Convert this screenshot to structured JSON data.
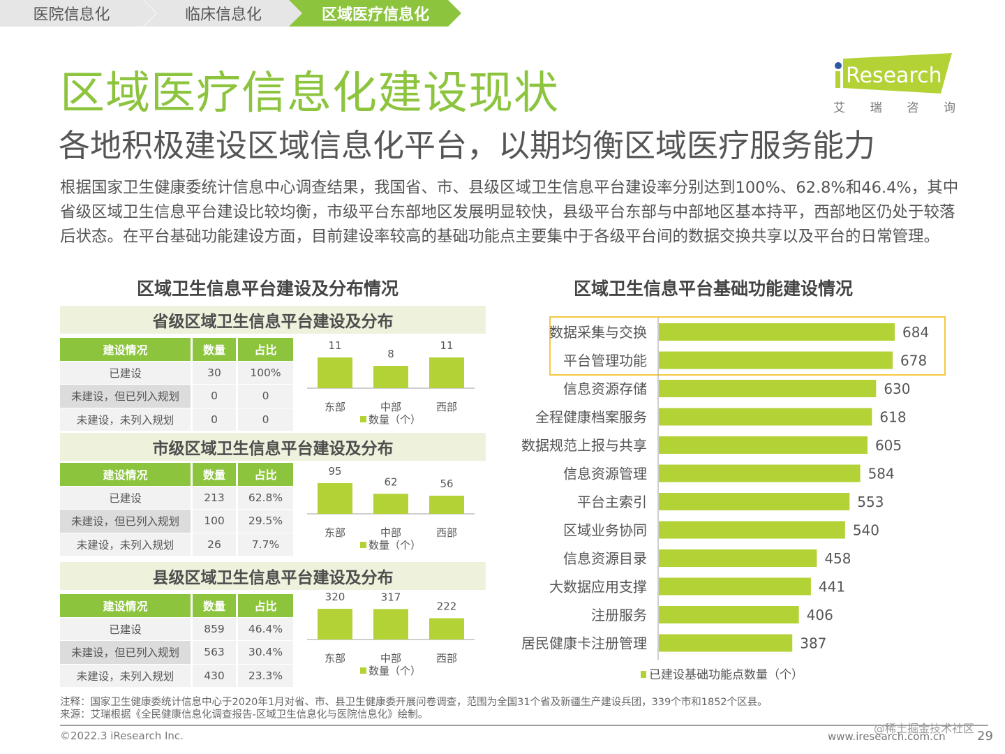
{
  "breadcrumb": {
    "tabs": [
      {
        "label": "医院信息化",
        "active": false
      },
      {
        "label": "临床信息化",
        "active": false
      },
      {
        "label": "区域医疗信息化",
        "active": true
      }
    ]
  },
  "colors": {
    "brand_green": "#8cc43e",
    "bar_green": "#b2d235",
    "highlight_border": "#f5c842",
    "inactive_tab": "#e6e6e6",
    "panel_header_bg": "#eef2dc"
  },
  "logo": {
    "text": "Research",
    "i_letter": "i",
    "sub": [
      "艾",
      "瑞",
      "咨",
      "询"
    ]
  },
  "header": {
    "title": "区域医疗信息化建设现状",
    "subtitle": "各地积极建设区域信息化平台，以期均衡区域医疗服务能力"
  },
  "body_text": "根据国家卫生健康委统计信息中心调查结果，我国省、市、县级区域卫生信息平台建设率分别达到100%、62.8%和46.4%，其中省级区域卫生信息平台建设比较均衡，市级平台东部地区发展明显较快，县级平台东部与中部地区基本持平，西部地区仍处于较落后状态。在平台基础功能建设方面，目前建设率较高的基础功能点主要集中于各级平台间的数据交换共享以及平台的日常管理。",
  "left_section": {
    "title": "区域卫生信息平台建设及分布情况",
    "columns": [
      "建设情况",
      "数量",
      "占比"
    ],
    "legend": "数量（个）",
    "panels": [
      {
        "title": "省级区域卫生信息平台建设及分布",
        "rows": [
          {
            "status": "已建设",
            "count": "30",
            "share": "100%"
          },
          {
            "status": "未建设，但已列入规划",
            "count": "0",
            "share": "0"
          },
          {
            "status": "未建设，未列入规划",
            "count": "0",
            "share": "0"
          }
        ]
      },
      {
        "title": "市级区域卫生信息平台建设及分布",
        "rows": [
          {
            "status": "已建设",
            "count": "213",
            "share": "62.8%"
          },
          {
            "status": "未建设，但已列入规划",
            "count": "100",
            "share": "29.5%"
          },
          {
            "status": "未建设，未列入规划",
            "count": "26",
            "share": "7.7%"
          }
        ]
      },
      {
        "title": "县级区域卫生信息平台建设及分布",
        "rows": [
          {
            "status": "已建设",
            "count": "859",
            "share": "46.4%"
          },
          {
            "status": "未建设，但已列入规划",
            "count": "563",
            "share": "30.4%"
          },
          {
            "status": "未建设，未列入规划",
            "count": "430",
            "share": "23.3%"
          }
        ]
      }
    ]
  },
  "right_section": {
    "title": "区域卫生信息平台基础功能建设情况"
  },
  "chart_data": [
    {
      "type": "bar",
      "title": "省级区域卫生信息平台建设及分布",
      "categories": [
        "东部",
        "中部",
        "西部"
      ],
      "series": [
        {
          "name": "数量（个）",
          "values": [
            11,
            8,
            11
          ]
        }
      ],
      "legend": "bottom"
    },
    {
      "type": "bar",
      "title": "市级区域卫生信息平台建设及分布",
      "categories": [
        "东部",
        "中部",
        "西部"
      ],
      "series": [
        {
          "name": "数量（个）",
          "values": [
            95,
            62,
            56
          ]
        }
      ],
      "legend": "bottom"
    },
    {
      "type": "bar",
      "title": "县级区域卫生信息平台建设及分布",
      "categories": [
        "东部",
        "中部",
        "西部"
      ],
      "series": [
        {
          "name": "数量（个）",
          "values": [
            320,
            317,
            222
          ]
        }
      ],
      "legend": "bottom"
    },
    {
      "type": "bar",
      "orientation": "horizontal",
      "title": "区域卫生信息平台基础功能建设情况",
      "categories": [
        "数据采集与交换",
        "平台管理功能",
        "信息资源存储",
        "全程健康档案服务",
        "数据规范上报与共享",
        "信息资源管理",
        "平台主索引",
        "区域业务协同",
        "信息资源目录",
        "大数据应用支撑",
        "注册服务",
        "居民健康卡注册管理"
      ],
      "series": [
        {
          "name": "已建设基础功能点数量（个）",
          "values": [
            684,
            678,
            630,
            618,
            605,
            584,
            553,
            540,
            458,
            441,
            406,
            387
          ]
        }
      ],
      "highlighted": [
        "数据采集与交换",
        "平台管理功能"
      ],
      "legend": "bottom",
      "xlim": [
        0,
        720
      ]
    }
  ],
  "footer": {
    "note": "注释：国家卫生健康委统计信息中心于2020年1月对省、市、县卫生健康委开展问卷调查，范围为全国31个省及新疆生产建设兵团，339个市和1852个区县。",
    "source": "来源：艾瑞根据《全民健康信息化调查报告-区域卫生信息化与医院信息化》绘制。",
    "copyright": "©2022.3 iResearch Inc.",
    "website": "www.iresearch.com.cn",
    "watermark": "@稀土掘金技术社区",
    "page_number": "29"
  }
}
